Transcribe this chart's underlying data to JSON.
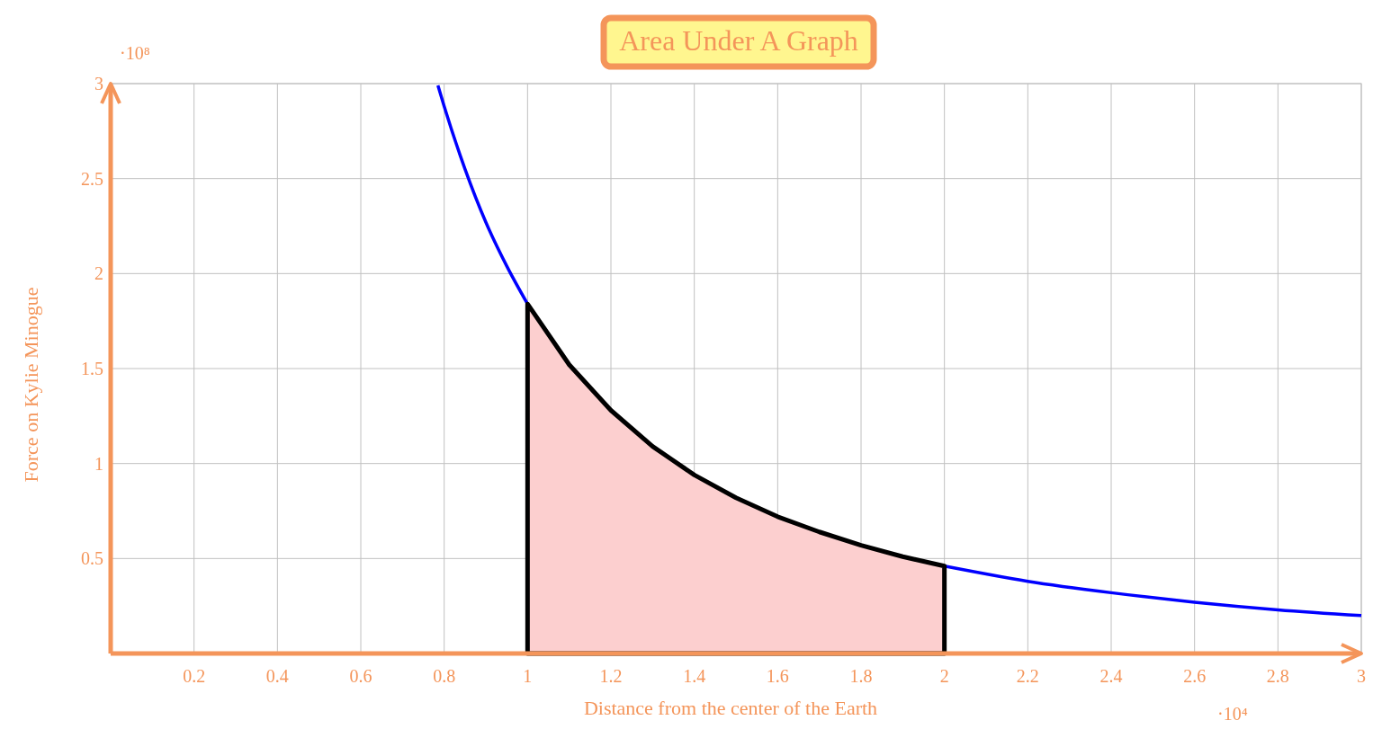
{
  "chart_data": {
    "type": "line",
    "title": "Area Under A Graph",
    "xlabel": "Distance from the center of the Earth",
    "ylabel": "Force on Kylie Minogue",
    "annotations": [
      "·10⁸",
      "·10⁴"
    ],
    "xlim": [
      0,
      3
    ],
    "ylim": [
      0,
      3
    ],
    "xticks": [
      {
        "value": 0,
        "label": null
      },
      0.2,
      0.4,
      0.6,
      0.8,
      1,
      1.2,
      1.4,
      1.6,
      1.8,
      2,
      2.2,
      2.4,
      2.6,
      2.8,
      3
    ],
    "yticks": [
      {
        "value": 0,
        "label": null
      },
      0.5,
      1,
      1.5,
      2,
      2.5,
      3
    ],
    "grid": true,
    "series": [
      {
        "type": "area",
        "color": "#fccfcf",
        "x": [
          1,
          1.1,
          1.2,
          1.3,
          1.4,
          1.5,
          1.6,
          1.7,
          1.8,
          1.9,
          2
        ],
        "values": [
          1.84,
          1.52,
          1.28,
          1.09,
          0.94,
          0.82,
          0.72,
          0.64,
          0.57,
          0.51,
          0.46
        ]
      },
      {
        "color": "#0000ff",
        "x": [
          0.785,
          0.8,
          0.85,
          0.9,
          0.95,
          1,
          1.1,
          1.2,
          1.3,
          1.4,
          1.5,
          1.6,
          1.8,
          2,
          2.2,
          2.4,
          2.6,
          2.8,
          3
        ],
        "values": [
          2.99,
          2.88,
          2.55,
          2.27,
          2.04,
          1.84,
          null,
          null,
          null,
          null,
          null,
          null,
          null,
          0.46,
          0.38,
          0.32,
          0.27,
          0.23,
          0.2
        ]
      }
    ]
  }
}
